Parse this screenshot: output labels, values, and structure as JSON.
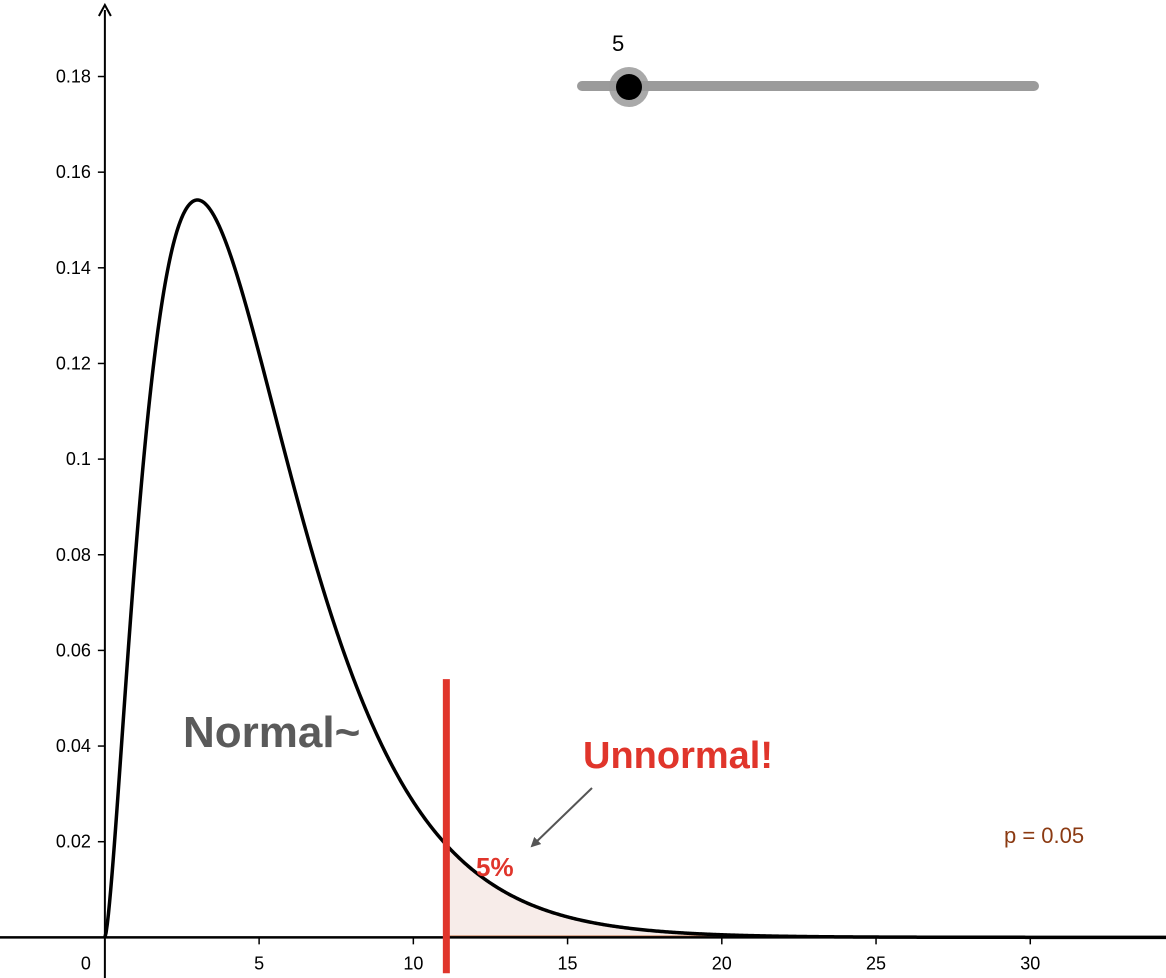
{
  "chart_data": {
    "type": "line",
    "title": "",
    "xlabel": "",
    "ylabel": "",
    "xlim": [
      -3.4,
      34.4
    ],
    "ylim": [
      -0.0085,
      0.196
    ],
    "x_ticks": [
      0,
      5,
      10,
      15,
      20,
      25,
      30
    ],
    "x_tick_labels": [
      "0",
      "5",
      "10",
      "15",
      "20",
      "25",
      "30"
    ],
    "y_ticks": [
      0.02,
      0.04,
      0.06,
      0.08,
      0.1,
      0.12,
      0.14,
      0.16,
      0.18
    ],
    "y_tick_labels": [
      "0.02",
      "0.04",
      "0.06",
      "0.08",
      "0.1",
      "0.12",
      "0.14",
      "0.16",
      "0.18"
    ],
    "grid": false,
    "series": [
      {
        "distribution": "chi-square",
        "degrees_of_freedom": 5,
        "x_range": [
          0,
          34.4
        ],
        "color": "#000000"
      }
    ],
    "critical_value": 11.07,
    "critical_line_y_range": [
      -0.0075,
      0.054
    ],
    "critical_line_color": "#e0352b",
    "shaded_region": {
      "x_from": 11.07,
      "x_to": 22,
      "fill": "#f7ece9",
      "stroke": "#c9825f"
    },
    "annotations": {
      "normal": {
        "text": "Normal~",
        "color": "#5a5a5a"
      },
      "unnormal": {
        "text": "Unnormal!",
        "color": "#e0352b"
      },
      "percent": {
        "text": "5%",
        "color": "#e0352b"
      },
      "p_value": {
        "text": "p = 0.05",
        "color": "#8b3a12"
      }
    },
    "slider": {
      "value": 5,
      "label": "5",
      "min": 1,
      "max": 30
    }
  }
}
